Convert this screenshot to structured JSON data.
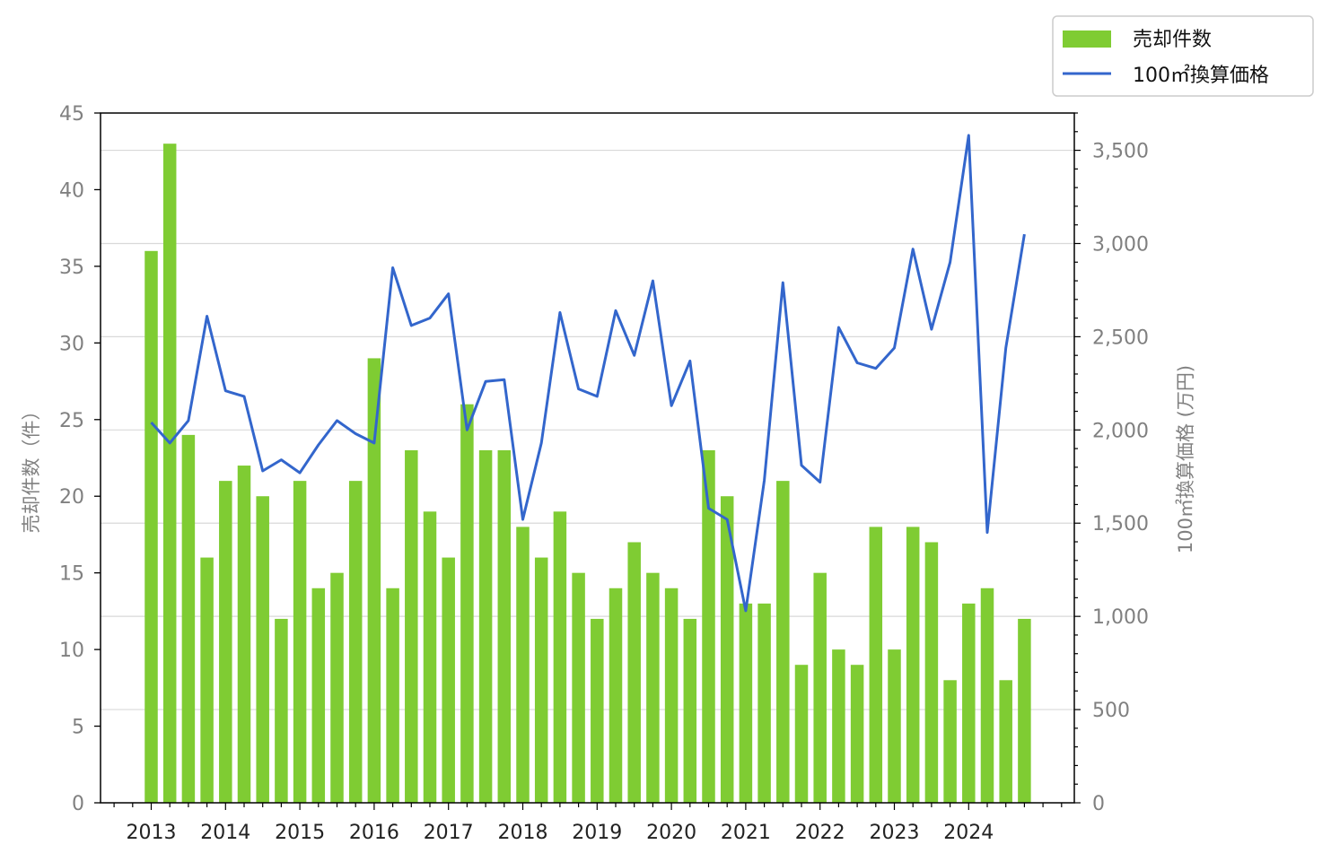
{
  "chart_data": {
    "type": "bar+line",
    "x": [
      "2013-Q1",
      "2013-Q2",
      "2013-Q3",
      "2013-Q4",
      "2014-Q1",
      "2014-Q2",
      "2014-Q3",
      "2014-Q4",
      "2015-Q1",
      "2015-Q2",
      "2015-Q3",
      "2015-Q4",
      "2016-Q1",
      "2016-Q2",
      "2016-Q3",
      "2016-Q4",
      "2017-Q1",
      "2017-Q2",
      "2017-Q3",
      "2017-Q4",
      "2018-Q1",
      "2018-Q2",
      "2018-Q3",
      "2018-Q4",
      "2019-Q1",
      "2019-Q2",
      "2019-Q3",
      "2019-Q4",
      "2020-Q1",
      "2020-Q2",
      "2020-Q3",
      "2020-Q4",
      "2021-Q1",
      "2021-Q2",
      "2021-Q3",
      "2021-Q4",
      "2022-Q1",
      "2022-Q2",
      "2022-Q3",
      "2022-Q4",
      "2023-Q1",
      "2023-Q2",
      "2023-Q3",
      "2023-Q4",
      "2024-Q1",
      "2024-Q2",
      "2024-Q3",
      "2024-Q4"
    ],
    "x_tick_labels": [
      "2013",
      "2014",
      "2015",
      "2016",
      "2017",
      "2018",
      "2019",
      "2020",
      "2021",
      "2022",
      "2023",
      "2024"
    ],
    "series": [
      {
        "name": "売却件数",
        "type": "bar",
        "axis": "left",
        "color": "#7fcc33",
        "values": [
          36,
          43,
          24,
          16,
          21,
          22,
          20,
          12,
          21,
          14,
          15,
          21,
          29,
          14,
          23,
          19,
          16,
          26,
          23,
          23,
          18,
          16,
          19,
          15,
          12,
          14,
          17,
          15,
          14,
          12,
          23,
          20,
          13,
          13,
          21,
          9,
          15,
          10,
          9,
          18,
          10,
          18,
          17,
          8,
          13,
          14,
          8,
          12
        ]
      },
      {
        "name": "100㎡換算価格",
        "type": "line",
        "axis": "right",
        "color": "#3366cc",
        "values": [
          2040,
          1930,
          2050,
          2610,
          2210,
          2180,
          1780,
          1840,
          1770,
          1920,
          2050,
          1980,
          1930,
          2870,
          2560,
          2600,
          2730,
          2000,
          2260,
          2270,
          1520,
          1930,
          2630,
          2220,
          2180,
          2640,
          2400,
          2800,
          2130,
          2370,
          1580,
          1520,
          1030,
          1730,
          2790,
          1810,
          1720,
          2550,
          2360,
          2330,
          2440,
          2970,
          2540,
          2900,
          3580,
          1450,
          2440,
          3050
        ]
      }
    ],
    "ylabel_left": "売却件数（件）",
    "ylabel_right": "100㎡換算価格 (万円)",
    "ylim_left": [
      0,
      45
    ],
    "yticks_left": [
      0,
      5,
      10,
      15,
      20,
      25,
      30,
      35,
      40,
      45
    ],
    "yticks_left_labels": [
      "0",
      "5",
      "10",
      "15",
      "20",
      "25",
      "30",
      "35",
      "40",
      "45"
    ],
    "ylim_right": [
      0,
      3700
    ],
    "yticks_right": [
      0,
      500,
      1000,
      1500,
      2000,
      2500,
      3000,
      3500
    ],
    "yticks_right_labels": [
      "0",
      "500",
      "1,000",
      "1,500",
      "2,000",
      "2,500",
      "3,000",
      "3,500"
    ],
    "grid": "horizontal (right axis)",
    "legend": "top-right, outside plot",
    "legend_entries": [
      "売却件数",
      "100㎡換算価格"
    ]
  }
}
